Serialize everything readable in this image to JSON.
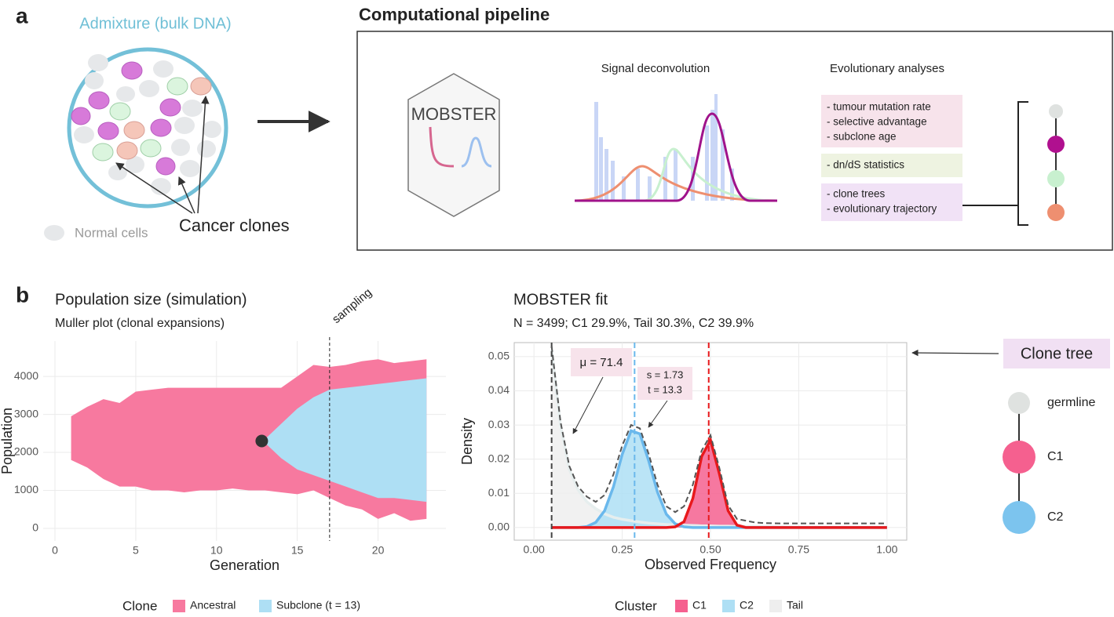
{
  "panel_a": {
    "label": "a",
    "admixture": "Admixture (bulk DNA)",
    "normal_cells": "Normal cells",
    "cancer_clones": "Cancer clones",
    "pipeline_title": "Computational pipeline",
    "tool": "MOBSTER",
    "signal": "Signal deconvolution",
    "evolution": "Evolutionary analyses",
    "boxes": [
      [
        "- tumour mutation rate",
        "- selective advantage",
        "- subclone age"
      ],
      [
        "- dn/dS statistics"
      ],
      [
        "- clone trees",
        "- evolutionary trajectory"
      ]
    ]
  },
  "panel_b": {
    "label": "b",
    "muller": {
      "type": "area",
      "title": "Population size (simulation)",
      "subtitle": "Muller plot (clonal expansions)",
      "x_label": "Generation",
      "y_label": "Population",
      "xlim": [
        -0.73,
        24.2
      ],
      "ylim": [
        -330,
        4930
      ],
      "xticks": [
        0,
        5,
        10,
        15,
        20
      ],
      "yticks": [
        0,
        1000,
        2000,
        3000,
        4000
      ],
      "grid": true,
      "legend_title": "Clone",
      "series": [
        {
          "name": "Ancestral",
          "color": "#f7799f",
          "x": [
            1,
            2,
            3,
            4,
            5,
            6,
            7,
            8,
            9,
            10,
            11,
            12,
            13,
            14,
            15,
            16,
            17,
            18,
            19,
            20,
            21,
            22,
            23
          ],
          "upper": [
            2950,
            3200,
            3400,
            3300,
            3600,
            3650,
            3700,
            3700,
            3700,
            3700,
            3700,
            3700,
            3700,
            3700,
            4000,
            4300,
            4250,
            4300,
            4400,
            4450,
            4350,
            4400,
            4450
          ],
          "lower": [
            1800,
            1600,
            1300,
            1100,
            1100,
            1000,
            1000,
            950,
            1000,
            1000,
            1050,
            1000,
            1000,
            950,
            900,
            1000,
            800,
            600,
            500,
            250,
            400,
            200,
            250
          ]
        },
        {
          "name": "Subclone (t = 13)",
          "color": "#aedff4",
          "x": [
            13,
            14,
            15,
            16,
            17,
            18,
            19,
            20,
            21,
            22,
            23
          ],
          "upper": [
            2350,
            2750,
            3150,
            3450,
            3650,
            3700,
            3750,
            3800,
            3850,
            3900,
            3950
          ],
          "lower": [
            2250,
            1850,
            1550,
            1400,
            1250,
            1100,
            950,
            800,
            800,
            750,
            700
          ]
        }
      ],
      "origin": {
        "x": 12.8,
        "y": 2300
      },
      "sampling": {
        "label": "sampling",
        "x": 17
      }
    },
    "fit": {
      "type": "line",
      "title": "MOBSTER fit",
      "subtitle": "N = 3499; C1 29.9%, Tail 30.3%, C2 39.9%",
      "x_label": "Observed Frequency",
      "y_label": "Density",
      "xlim": [
        -0.056,
        1.056
      ],
      "ylim": [
        -0.0037,
        0.0541
      ],
      "xticks": [
        {
          "value": 0,
          "label": "0.00"
        },
        {
          "value": 0.25,
          "label": "0.25"
        },
        {
          "value": 0.5,
          "label": "0.50"
        },
        {
          "value": 0.75,
          "label": "0.75"
        },
        {
          "value": 1,
          "label": "1.00"
        }
      ],
      "yticks": [
        {
          "value": 0,
          "label": "0.00"
        },
        {
          "value": 0.01,
          "label": "0.01"
        },
        {
          "value": 0.02,
          "label": "0.02"
        },
        {
          "value": 0.03,
          "label": "0.03"
        },
        {
          "value": 0.04,
          "label": "0.04"
        },
        {
          "value": 0.05,
          "label": "0.05"
        }
      ],
      "grid": true,
      "legend_title": "Cluster",
      "x": [
        0.05,
        0.075,
        0.1,
        0.125,
        0.15,
        0.175,
        0.2,
        0.225,
        0.25,
        0.275,
        0.3,
        0.325,
        0.35,
        0.375,
        0.4,
        0.425,
        0.45,
        0.475,
        0.5,
        0.525,
        0.55,
        0.575,
        0.6,
        0.625,
        0.65,
        0.7,
        0.8,
        0.9,
        1.0
      ],
      "series": [
        {
          "name": "C1",
          "color": "#f5608f",
          "line_color": "#e8191c",
          "values": [
            0,
            0,
            0,
            0,
            0,
            0,
            0,
            0,
            0,
            0,
            0,
            0,
            0,
            0,
            0.0002,
            0.0017,
            0.0085,
            0.0208,
            0.0256,
            0.0158,
            0.0049,
            0.0007,
            0,
            0,
            0,
            0,
            0,
            0,
            0
          ]
        },
        {
          "name": "C2",
          "color": "#aedff4",
          "line_color": "#6ab8ec",
          "values": [
            0,
            0,
            0,
            0,
            0.0003,
            0.0015,
            0.0049,
            0.0119,
            0.0214,
            0.0283,
            0.0274,
            0.0195,
            0.0103,
            0.0039,
            0.0011,
            0.0002,
            0,
            0,
            0,
            0,
            0,
            0,
            0,
            0,
            0,
            0,
            0,
            0,
            0
          ]
        },
        {
          "name": "Tail",
          "color": "#eeeeee",
          "line_color": "#e6eeee",
          "values": [
            0.052,
            0.03,
            0.017,
            0.011,
            0.0075,
            0.0055,
            0.004,
            0.003,
            0.0024,
            0.002,
            0.0016,
            0.0013,
            0.0011,
            0.0009,
            0.0008,
            0.0007,
            0.0006,
            0.0005,
            0.0005,
            0.0004,
            0.0004,
            0.0003,
            0.0003,
            0.0003,
            0.0003,
            0.0002,
            0.0001,
            0.0001,
            0.0001
          ]
        }
      ],
      "total": {
        "color": "#555555",
        "values": [
          0.053,
          0.031,
          0.018,
          0.012,
          0.009,
          0.0075,
          0.0095,
          0.0155,
          0.024,
          0.03,
          0.029,
          0.0215,
          0.0125,
          0.0062,
          0.0045,
          0.0062,
          0.0125,
          0.0225,
          0.027,
          0.0175,
          0.0065,
          0.0025,
          0.002,
          0.0015,
          0.0013,
          0.0012,
          0.0012,
          0.0012,
          0.0012
        ]
      },
      "vlines": [
        {
          "value": 0.05,
          "color": "#444444"
        },
        {
          "value": 0.285,
          "color": "#6ab8ec"
        },
        {
          "value": 0.495,
          "color": "#e8191c"
        }
      ],
      "annotations": {
        "mu": "μ = 71.4",
        "s": "s = 1.73",
        "t": "t = 13.3"
      }
    },
    "tree": {
      "title": "Clone tree",
      "nodes": [
        {
          "label": "germline",
          "color": "#dfe2e0"
        },
        {
          "label": "C1",
          "color": "#f5608f"
        },
        {
          "label": "C2",
          "color": "#7cc4ee"
        }
      ]
    }
  }
}
